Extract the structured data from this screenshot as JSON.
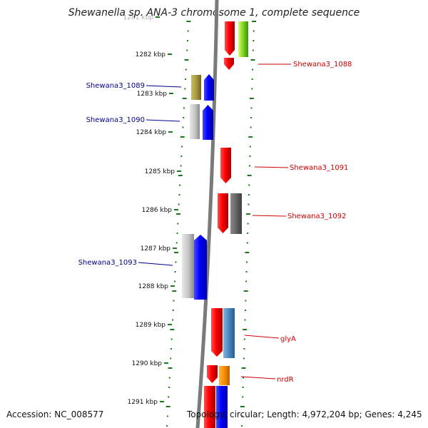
{
  "title": "Shewanella sp. ANA-3 chromosome 1, complete sequence",
  "accession": "Accession: NC_008577",
  "topology": "Topology: circular; Length: 4,972,204 bp; Genes: 4,245",
  "colors": {
    "backbone": "#777777",
    "tick": "#1a7a1a",
    "label_blue": "#00008b",
    "label_red": "#cc0000"
  },
  "kbp_ticks": [
    "1281 kbp",
    "1282 kbp",
    "1283 kbp",
    "1284 kbp",
    "1285 kbp",
    "1286 kbp",
    "1287 kbp",
    "1288 kbp",
    "1289 kbp",
    "1290 kbp",
    "1291 kbp"
  ],
  "gene_labels": [
    {
      "text": "Shewana3_1088",
      "side": "right",
      "color": "red"
    },
    {
      "text": "Shewana3_1089",
      "side": "left",
      "color": "blue"
    },
    {
      "text": "Shewana3_1090",
      "side": "left",
      "color": "blue"
    },
    {
      "text": "Shewana3_1091",
      "side": "right",
      "color": "red"
    },
    {
      "text": "Shewana3_1092",
      "side": "right",
      "color": "red"
    },
    {
      "text": "Shewana3_1093",
      "side": "left",
      "color": "blue"
    },
    {
      "text": "glyA",
      "side": "right",
      "color": "red"
    },
    {
      "text": "nrdR",
      "side": "right",
      "color": "red"
    }
  ]
}
